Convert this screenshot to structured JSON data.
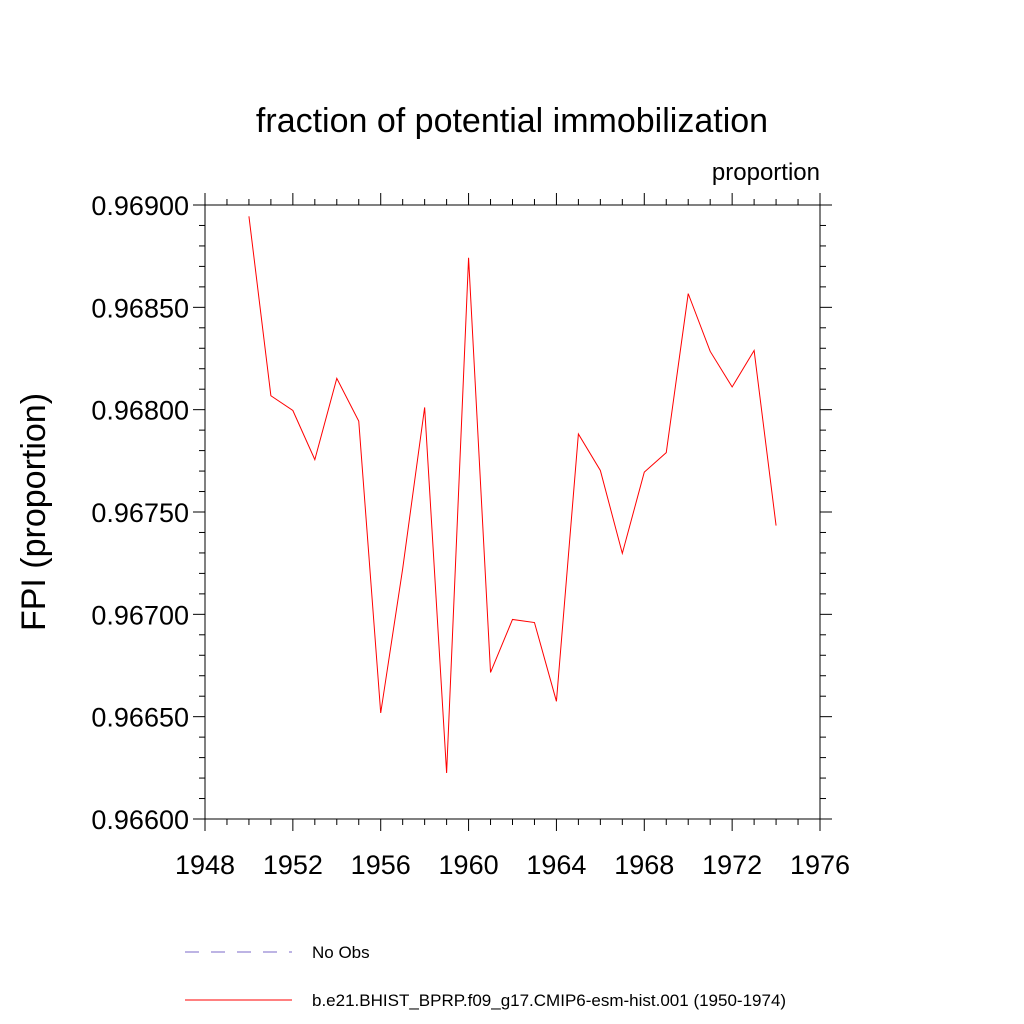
{
  "chart_data": {
    "type": "line",
    "title": "fraction of potential immobilization",
    "units_label": "proportion",
    "ylabel": "FPI  (proportion)",
    "xlabel": "",
    "xlim": [
      1948,
      1976
    ],
    "ylim": [
      0.966,
      0.969
    ],
    "x_ticks": [
      "1948",
      "1952",
      "1956",
      "1960",
      "1964",
      "1968",
      "1972",
      "1976"
    ],
    "y_ticks": [
      "0.96600",
      "0.96650",
      "0.96700",
      "0.96750",
      "0.96800",
      "0.96850",
      "0.96900"
    ],
    "series": [
      {
        "name": "b.e21.BHIST_BPRP.f09_g17.CMIP6-esm-hist.001 (1950-1974)",
        "color": "#ff0000",
        "style": "solid",
        "x": [
          1950,
          1951,
          1952,
          1953,
          1954,
          1955,
          1956,
          1957,
          1958,
          1959,
          1960,
          1961,
          1962,
          1963,
          1964,
          1965,
          1966,
          1967,
          1968,
          1969,
          1970,
          1971,
          1972,
          1973,
          1974
        ],
        "values": [
          0.968945,
          0.968068,
          0.967996,
          0.967756,
          0.968153,
          0.967944,
          0.966518,
          0.967223,
          0.968011,
          0.966225,
          0.968742,
          0.966716,
          0.966975,
          0.96696,
          0.966575,
          0.967881,
          0.967703,
          0.967298,
          0.967695,
          0.96779,
          0.968567,
          0.968285,
          0.968111,
          0.968289,
          0.967434
        ]
      }
    ],
    "legend": [
      {
        "label": "No Obs",
        "color": "#7b68c8",
        "style": "dashed"
      },
      {
        "label": "b.e21.BHIST_BPRP.f09_g17.CMIP6-esm-hist.001 (1950-1974)",
        "color": "#ff0000",
        "style": "solid"
      }
    ]
  }
}
